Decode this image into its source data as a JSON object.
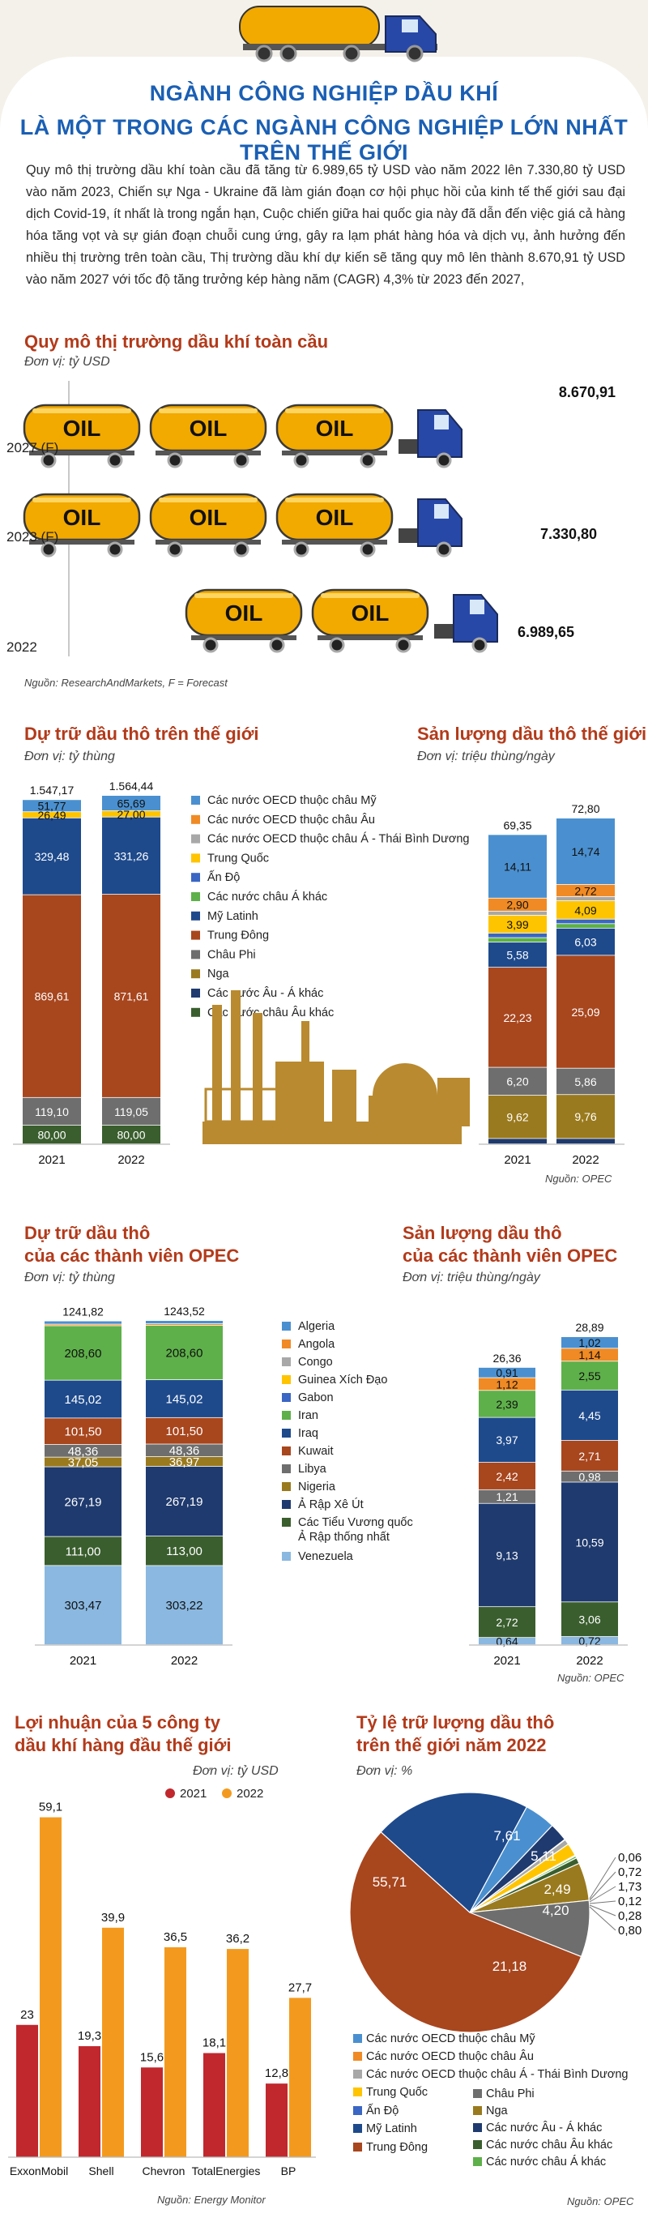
{
  "header": {
    "title_line1": "NGÀNH CÔNG NGHIỆP DẦU KHÍ",
    "title_line2": "LÀ MỘT TRONG CÁC NGÀNH CÔNG NGHIỆP LỚN NHẤT TRÊN THẾ GIỚI"
  },
  "intro": "Quy mô thị trường dầu khí toàn cầu đã tăng từ 6.989,65 tỷ USD vào năm 2022 lên 7.330,80 tỷ USD vào năm 2023, Chiến sự Nga - Ukraine đã làm gián đoạn cơ hội phục hồi của kinh tế thế giới sau đại dịch Covid-19, ít nhất là trong ngắn hạn, Cuộc chiến giữa hai quốc gia này đã dẫn đến việc giá cả hàng hóa tăng vọt và sự gián đoạn chuỗi cung ứng, gây ra lạm phát hàng hóa và dịch vụ, ảnh hưởng đến nhiều thị trường trên toàn cầu, Thị trường dầu khí dự kiến sẽ tăng quy mô lên thành 8.670,91 tỷ USD vào năm 2027 với tốc độ tăng trưởng kép hàng năm (CAGR) 4,3% từ 2023 đến 2027,",
  "colors": {
    "title_blue": "#1a5fb4",
    "section_red": "#b33a1a",
    "truck_blue": "#2848a8",
    "tank_gold": "#f2a900"
  },
  "market": {
    "title": "Quy mô thị trường dầu khí toàn cầu",
    "unit": "Đơn vị: tỷ USD",
    "tank_label": "OIL",
    "source": "Nguồn: ResearchAndMarkets, F = Forecast"
  },
  "palette": [
    "#4a90d0",
    "#f08a24",
    "#a8a8a8",
    "#ffc400",
    "#3a66c4",
    "#5eb04a",
    "#1e4a8c",
    "#a8461e",
    "#6e6e6e",
    "#9a7a1e",
    "#1f3a6e",
    "#3a5e2e"
  ],
  "legend_ww": [
    "Các nước OECD thuộc châu Mỹ",
    "Các nước OECD thuộc châu Âu",
    "Các nước OECD thuộc châu Á - Thái Bình Dương",
    "Trung Quốc",
    "Ấn Độ",
    "Các nước châu Á khác",
    "Mỹ Latinh",
    "Trung Đông",
    "Châu Phi",
    "Nga",
    "Các nước Âu - Á khác",
    "Các nước châu Âu khác"
  ],
  "reserves_ww": {
    "title": "Dự trữ dầu thô trên thế giới",
    "unit": "Đơn vị: tỷ thùng"
  },
  "production_ww": {
    "title": "Sản lượng dầu thô thế giới",
    "unit": "Đơn vị: triệu thùng/ngày",
    "source": "Nguồn: OPEC"
  },
  "opec_palette": [
    "#4a90d0",
    "#f08a24",
    "#a8a8a8",
    "#ffc400",
    "#3a66c4",
    "#5eb04a",
    "#1e4a8c",
    "#a8461e",
    "#6e6e6e",
    "#9a7a1e",
    "#1f3a6e",
    "#3a5e2e",
    "#8ab8e0"
  ],
  "legend_opec": [
    "Algeria",
    "Angola",
    "Congo",
    "Guinea Xích Đạo",
    "Gabon",
    "Iran",
    "Iraq",
    "Kuwait",
    "Libya",
    "Nigeria",
    "Ả Rập Xê Út",
    "Các Tiểu Vương quốc Ả Rập thống nhất",
    "Venezuela"
  ],
  "reserves_opec": {
    "title_line1": "Dự trữ dầu thô",
    "title_line2": "của các thành viên OPEC",
    "unit": "Đơn vị: tỷ thùng"
  },
  "production_opec": {
    "title_line1": "Sản lượng dầu thô",
    "title_line2": "của các thành viên OPEC",
    "unit": "Đơn vị: triệu thùng/ngày",
    "source": "Nguồn: OPEC"
  },
  "profit": {
    "title_line1": "Lợi nhuận của 5 công ty",
    "title_line2": "dầu khí hàng đầu thế giới",
    "unit": "Đơn vị: tỷ USD",
    "source": "Nguồn: Energy Monitor"
  },
  "share": {
    "title_line1": "Tỷ lệ trữ lượng dầu thô",
    "title_line2": "trên thế giới năm 2022",
    "unit": "Đơn vị: %",
    "source": "Nguồn: OPEC"
  },
  "chart_data": [
    {
      "id": "market",
      "type": "bar",
      "orientation": "horizontal",
      "categories": [
        "2027 (F)",
        "2023 (F)",
        "2022"
      ],
      "values": [
        8670.91,
        7330.8,
        6989.65
      ],
      "value_labels": [
        "8.670,91",
        "7.330,80",
        "6.989,65"
      ]
    },
    {
      "id": "reserves_ww",
      "type": "bar",
      "stacked": true,
      "categories": [
        "2021",
        "2022"
      ],
      "totals": [
        "1.547,17",
        "1.564,44"
      ],
      "segments": [
        [
          {
            "v": 80.0,
            "label": "80,00",
            "c": 11
          },
          {
            "v": 119.1,
            "label": "119,10",
            "c": 8
          },
          {
            "v": 869.61,
            "label": "869,61",
            "c": 7
          },
          {
            "v": 329.48,
            "label": "329,48",
            "c": 6
          },
          {
            "v": 26.49,
            "label": "26,49",
            "c": 3
          },
          {
            "v": 51.77,
            "label": "51,77",
            "c": 0
          }
        ],
        [
          {
            "v": 80.0,
            "label": "80,00",
            "c": 11
          },
          {
            "v": 119.05,
            "label": "119,05",
            "c": 8
          },
          {
            "v": 871.61,
            "label": "871,61",
            "c": 7
          },
          {
            "v": 331.26,
            "label": "331,26",
            "c": 6
          },
          {
            "v": 27.0,
            "label": "27,00",
            "c": 3
          },
          {
            "v": 65.69,
            "label": "65,69",
            "c": 0
          }
        ]
      ]
    },
    {
      "id": "production_ww",
      "type": "bar",
      "stacked": true,
      "categories": [
        "2021",
        "2022"
      ],
      "totals": [
        "69,35",
        "72,80"
      ],
      "segments": [
        [
          {
            "v": 1.2,
            "label": "",
            "c": 10
          },
          {
            "v": 9.62,
            "label": "9,62",
            "c": 9
          },
          {
            "v": 6.2,
            "label": "6,20",
            "c": 8
          },
          {
            "v": 22.23,
            "label": "22,23",
            "c": 7
          },
          {
            "v": 5.58,
            "label": "5,58",
            "c": 6
          },
          {
            "v": 1.0,
            "label": "",
            "c": 5
          },
          {
            "v": 1.0,
            "label": "",
            "c": 4
          },
          {
            "v": 3.99,
            "label": "3,99",
            "c": 3
          },
          {
            "v": 0.9,
            "label": "",
            "c": 2
          },
          {
            "v": 2.9,
            "label": "2,90",
            "c": 1
          },
          {
            "v": 14.11,
            "label": "14,11",
            "c": 0
          }
        ],
        [
          {
            "v": 1.2,
            "label": "",
            "c": 10
          },
          {
            "v": 9.76,
            "label": "9,76",
            "c": 9
          },
          {
            "v": 5.86,
            "label": "5,86",
            "c": 8
          },
          {
            "v": 25.09,
            "label": "25,09",
            "c": 7
          },
          {
            "v": 6.03,
            "label": "6,03",
            "c": 6
          },
          {
            "v": 1.0,
            "label": "",
            "c": 5
          },
          {
            "v": 1.0,
            "label": "",
            "c": 4
          },
          {
            "v": 4.09,
            "label": "4,09",
            "c": 3
          },
          {
            "v": 0.9,
            "label": "",
            "c": 2
          },
          {
            "v": 2.72,
            "label": "2,72",
            "c": 1
          },
          {
            "v": 14.74,
            "label": "14,74",
            "c": 0
          }
        ]
      ]
    },
    {
      "id": "reserves_opec",
      "type": "bar",
      "stacked": true,
      "categories": [
        "2021",
        "2022"
      ],
      "totals": [
        "1241,82",
        "1243,52"
      ],
      "segments": [
        [
          {
            "v": 303.47,
            "label": "303,47",
            "c": 12
          },
          {
            "v": 111.0,
            "label": "111,00",
            "c": 11
          },
          {
            "v": 267.19,
            "label": "267,19",
            "c": 10
          },
          {
            "v": 37.05,
            "label": "37,05",
            "c": 9
          },
          {
            "v": 48.36,
            "label": "48,36",
            "c": 8
          },
          {
            "v": 101.5,
            "label": "101,50",
            "c": 7
          },
          {
            "v": 145.02,
            "label": "145,02",
            "c": 6
          },
          {
            "v": 208.6,
            "label": "208,60",
            "c": 5
          },
          {
            "v": 6.0,
            "label": "",
            "c": 1
          },
          {
            "v": 12.2,
            "label": "",
            "c": 0
          }
        ],
        [
          {
            "v": 303.22,
            "label": "303,22",
            "c": 12
          },
          {
            "v": 113.0,
            "label": "113,00",
            "c": 11
          },
          {
            "v": 267.19,
            "label": "267,19",
            "c": 10
          },
          {
            "v": 36.97,
            "label": "36,97",
            "c": 9
          },
          {
            "v": 48.36,
            "label": "48,36",
            "c": 8
          },
          {
            "v": 101.5,
            "label": "101,50",
            "c": 7
          },
          {
            "v": 145.02,
            "label": "145,02",
            "c": 6
          },
          {
            "v": 208.6,
            "label": "208,60",
            "c": 5
          },
          {
            "v": 6.0,
            "label": "",
            "c": 1
          },
          {
            "v": 12.2,
            "label": "",
            "c": 0
          }
        ]
      ]
    },
    {
      "id": "production_opec",
      "type": "bar",
      "stacked": true,
      "categories": [
        "2021",
        "2022"
      ],
      "totals": [
        "26,36",
        "28,89"
      ],
      "segments": [
        [
          {
            "v": 0.64,
            "label": "0,64",
            "c": 12
          },
          {
            "v": 2.72,
            "label": "2,72",
            "c": 11
          },
          {
            "v": 9.13,
            "label": "9,13",
            "c": 10
          },
          {
            "v": 1.21,
            "label": "1,21",
            "c": 8
          },
          {
            "v": 2.42,
            "label": "2,42",
            "c": 7
          },
          {
            "v": 3.97,
            "label": "3,97",
            "c": 6
          },
          {
            "v": 2.39,
            "label": "2,39",
            "c": 5
          },
          {
            "v": 1.12,
            "label": "1,12",
            "c": 1
          },
          {
            "v": 0.91,
            "label": "0,91",
            "c": 0
          }
        ],
        [
          {
            "v": 0.72,
            "label": "0,72",
            "c": 12
          },
          {
            "v": 3.06,
            "label": "3,06",
            "c": 11
          },
          {
            "v": 10.59,
            "label": "10,59",
            "c": 10
          },
          {
            "v": 0.98,
            "label": "0,98",
            "c": 8
          },
          {
            "v": 2.71,
            "label": "2,71",
            "c": 7
          },
          {
            "v": 4.45,
            "label": "4,45",
            "c": 6
          },
          {
            "v": 2.55,
            "label": "2,55",
            "c": 5
          },
          {
            "v": 1.14,
            "label": "1,14",
            "c": 1
          },
          {
            "v": 1.02,
            "label": "1,02",
            "c": 0
          }
        ]
      ]
    },
    {
      "id": "profit",
      "type": "bar",
      "categories": [
        "ExxonMobil",
        "Shell",
        "Chevron",
        "TotalEnergies",
        "BP"
      ],
      "series": [
        {
          "name": "2021",
          "values": [
            23,
            19.3,
            15.6,
            18.1,
            12.8
          ],
          "labels": [
            "23",
            "19,3",
            "15,6",
            "18,1",
            "12,8"
          ],
          "color": "#c0282e"
        },
        {
          "name": "2022",
          "values": [
            59.1,
            39.9,
            36.5,
            36.2,
            27.7
          ],
          "labels": [
            "59,1",
            "39,9",
            "36,5",
            "36,2",
            "27,7"
          ],
          "color": "#f39a1e"
        }
      ],
      "ylim": [
        0,
        62
      ]
    },
    {
      "id": "share",
      "type": "pie",
      "slices": [
        {
          "v": 55.71,
          "label": "55,71",
          "c": 7
        },
        {
          "v": 21.18,
          "label": "21,18",
          "c": 6
        },
        {
          "v": 4.2,
          "label": "4,20",
          "c": 0
        },
        {
          "v": 2.49,
          "label": "2,49",
          "c": 10
        },
        {
          "v": 0.06,
          "label": "0,06",
          "c": 1
        },
        {
          "v": 0.72,
          "label": "0,72",
          "c": 2
        },
        {
          "v": 1.73,
          "label": "1,73",
          "c": 3
        },
        {
          "v": 0.12,
          "label": "0,12",
          "c": 4
        },
        {
          "v": 0.28,
          "label": "0,28",
          "c": 5
        },
        {
          "v": 0.8,
          "label": "0,80",
          "c": 11
        },
        {
          "v": 5.11,
          "label": "5,11",
          "c": 9
        },
        {
          "v": 7.61,
          "label": "7,61",
          "c": 8
        }
      ]
    }
  ]
}
